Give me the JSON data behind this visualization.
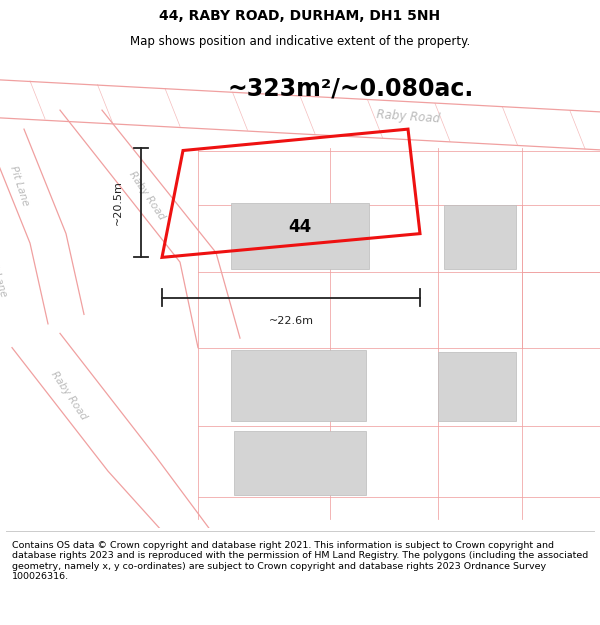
{
  "title": "44, RABY ROAD, DURHAM, DH1 5NH",
  "subtitle": "Map shows position and indicative extent of the property.",
  "area_text": "~323m²/~0.080ac.",
  "label_44": "44",
  "dim_height": "~20.5m",
  "dim_width": "~22.6m",
  "plot_outline_color": "#ee1111",
  "building_fill": "#d4d4d4",
  "building_edge": "#bbbbbb",
  "road_line_color": "#f0a0a0",
  "boundary_line_color": "#f0a0a0",
  "road_label_color": "#bbbbbb",
  "footer_text": "Contains OS data © Crown copyright and database right 2021. This information is subject to Crown copyright and database rights 2023 and is reproduced with the permission of HM Land Registry. The polygons (including the associated geometry, namely x, y co-ordinates) are subject to Crown copyright and database rights 2023 Ordnance Survey 100026316.",
  "title_fontsize": 10,
  "subtitle_fontsize": 8.5,
  "area_fontsize": 17,
  "footer_fontsize": 6.8,
  "map_border_color": "#cccccc"
}
